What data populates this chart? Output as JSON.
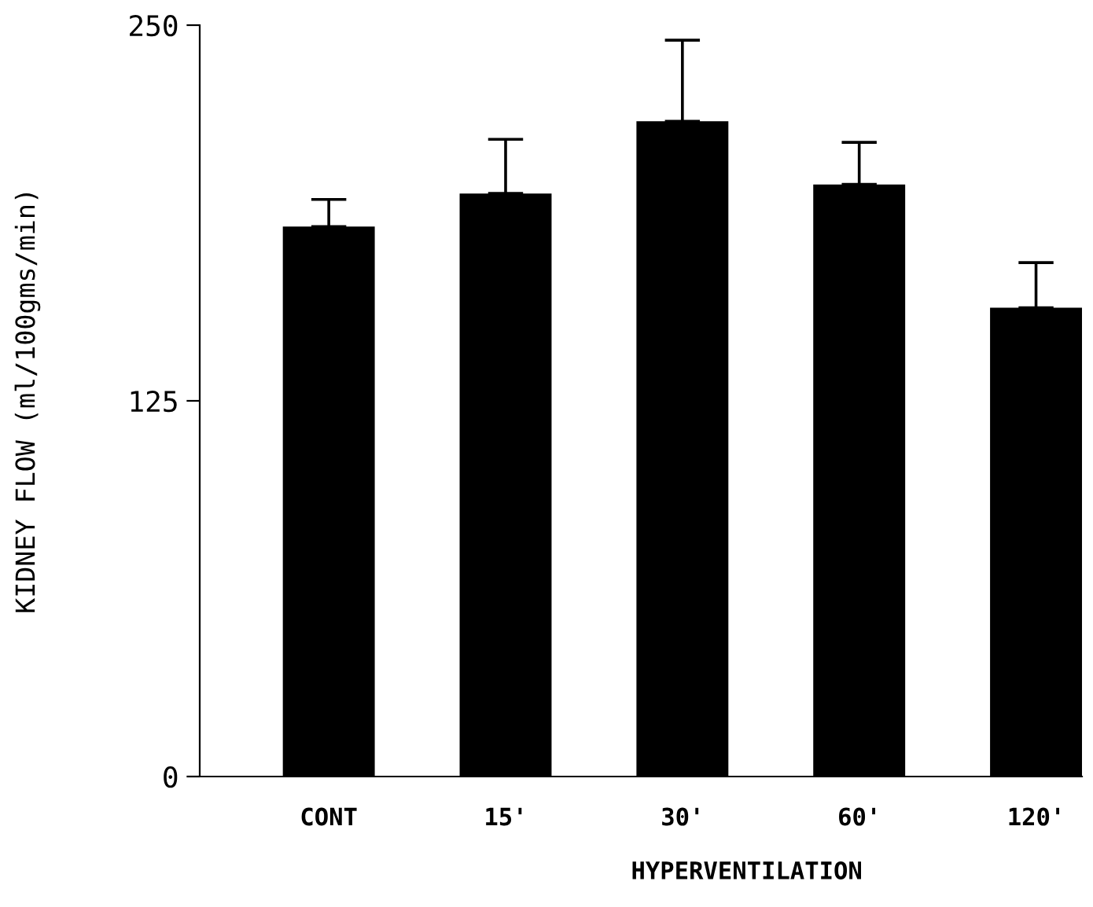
{
  "chart_data": {
    "type": "bar",
    "categories": [
      "CONT",
      "15'",
      "30'",
      "60'",
      "120'"
    ],
    "values": [
      183,
      194,
      218,
      197,
      156
    ],
    "errors": [
      [
        183,
        192
      ],
      [
        194,
        212
      ],
      [
        218,
        245
      ],
      [
        197,
        211
      ],
      [
        156,
        171
      ]
    ],
    "color": "#000000",
    "xlabel": "HYPERVENTILATION",
    "ylabel": "KIDNEY FLOW (ml/100gms/min)",
    "ylim": [
      0,
      250
    ],
    "yticks": [
      0,
      125,
      250
    ],
    "grid": false,
    "legend": false
  }
}
